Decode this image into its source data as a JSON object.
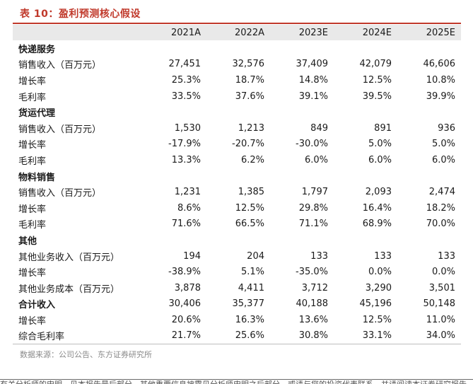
{
  "title": "表 10：盈利预测核心假设",
  "columns": [
    "",
    "2021A",
    "2022A",
    "2023E",
    "2024E",
    "2025E"
  ],
  "rows": [
    {
      "type": "section",
      "label": "快递服务",
      "values": [
        "",
        "",
        "",
        "",
        ""
      ]
    },
    {
      "type": "row",
      "label": "销售收入（百万元）",
      "values": [
        "27,451",
        "32,576",
        "37,409",
        "42,079",
        "46,606"
      ]
    },
    {
      "type": "row",
      "label": "增长率",
      "values": [
        "25.3%",
        "18.7%",
        "14.8%",
        "12.5%",
        "10.8%"
      ]
    },
    {
      "type": "row",
      "label": "毛利率",
      "values": [
        "33.5%",
        "37.6%",
        "39.1%",
        "39.5%",
        "39.9%"
      ]
    },
    {
      "type": "section",
      "label": "货运代理",
      "values": [
        "",
        "",
        "",
        "",
        ""
      ]
    },
    {
      "type": "row",
      "label": "销售收入（百万元）",
      "values": [
        "1,530",
        "1,213",
        "849",
        "891",
        "936"
      ]
    },
    {
      "type": "row",
      "label": "增长率",
      "values": [
        "-17.9%",
        "-20.7%",
        "-30.0%",
        "5.0%",
        "5.0%"
      ]
    },
    {
      "type": "row",
      "label": "毛利率",
      "values": [
        "13.3%",
        "6.2%",
        "6.0%",
        "6.0%",
        "6.0%"
      ]
    },
    {
      "type": "section",
      "label": "物料销售",
      "values": [
        "",
        "",
        "",
        "",
        ""
      ]
    },
    {
      "type": "row",
      "label": "销售收入（百万元）",
      "values": [
        "1,231",
        "1,385",
        "1,797",
        "2,093",
        "2,474"
      ]
    },
    {
      "type": "row",
      "label": "增长率",
      "values": [
        "8.6%",
        "12.5%",
        "29.8%",
        "16.4%",
        "18.2%"
      ]
    },
    {
      "type": "row",
      "label": "毛利率",
      "values": [
        "71.6%",
        "66.5%",
        "71.1%",
        "68.9%",
        "70.0%"
      ]
    },
    {
      "type": "section",
      "label": "其他",
      "values": [
        "",
        "",
        "",
        "",
        ""
      ]
    },
    {
      "type": "row",
      "label": "其他业务收入（百万元）",
      "values": [
        "194",
        "204",
        "133",
        "133",
        "133"
      ]
    },
    {
      "type": "row",
      "label": "增长率",
      "values": [
        "-38.9%",
        "5.1%",
        "-35.0%",
        "0.0%",
        "0.0%"
      ]
    },
    {
      "type": "row",
      "label": "其他业务成本（百万元）",
      "values": [
        "3,878",
        "4,411",
        "3,712",
        "3,290",
        "3,501"
      ]
    },
    {
      "type": "total",
      "label": "合计收入",
      "values": [
        "30,406",
        "35,377",
        "40,188",
        "45,196",
        "50,148"
      ]
    },
    {
      "type": "row",
      "label": "增长率",
      "values": [
        "20.6%",
        "16.3%",
        "13.6%",
        "12.5%",
        "11.0%"
      ]
    },
    {
      "type": "row",
      "label": "综合毛利率",
      "values": [
        "21.7%",
        "25.6%",
        "30.8%",
        "33.1%",
        "34.0%"
      ]
    }
  ],
  "source": "数据来源：公司公告、东方证券研究所",
  "footer_clipped": "有关分析师的申明，见本报告最后部分。其他重要信息披露见分析师申明之后部分，或请与您的投资代表联系。并请阅读本证券研究报告最后一页的免责申明。"
}
